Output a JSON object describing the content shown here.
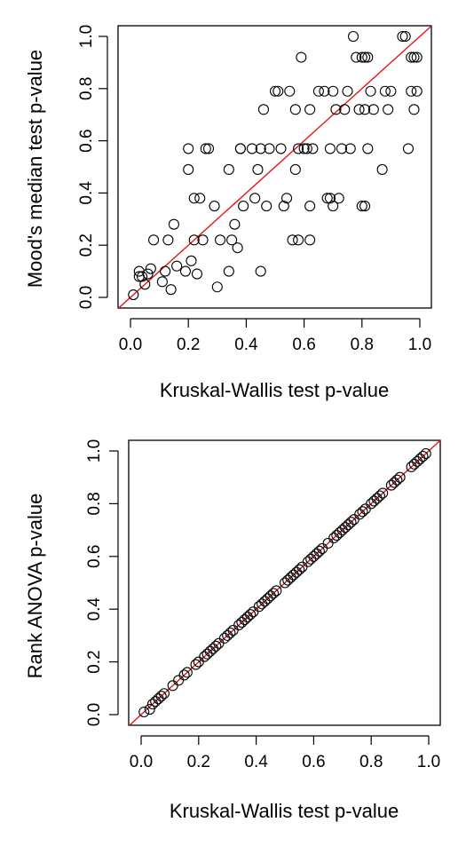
{
  "chart_data": [
    {
      "type": "scatter",
      "title": "",
      "xlabel": "Kruskal-Wallis test p-value",
      "ylabel": "Mood's median test p-value",
      "xlim": [
        0,
        1
      ],
      "ylim": [
        0,
        1
      ],
      "xticks": [
        "0.0",
        "0.2",
        "0.4",
        "0.6",
        "0.8",
        "1.0"
      ],
      "yticks": [
        "0.0",
        "0.2",
        "0.4",
        "0.6",
        "0.8",
        "1.0"
      ],
      "reference_line": {
        "type": "identity",
        "color": "#e31a1c"
      },
      "point_style": "open-circle",
      "grid": false,
      "x": [
        0.01,
        0.03,
        0.03,
        0.05,
        0.04,
        0.06,
        0.08,
        0.07,
        0.11,
        0.12,
        0.13,
        0.14,
        0.15,
        0.16,
        0.19,
        0.2,
        0.2,
        0.21,
        0.22,
        0.22,
        0.23,
        0.24,
        0.25,
        0.26,
        0.27,
        0.29,
        0.3,
        0.31,
        0.34,
        0.34,
        0.35,
        0.36,
        0.37,
        0.38,
        0.38,
        0.39,
        0.42,
        0.43,
        0.44,
        0.45,
        0.45,
        0.46,
        0.47,
        0.48,
        0.5,
        0.51,
        0.52,
        0.53,
        0.54,
        0.55,
        0.56,
        0.57,
        0.58,
        0.58,
        0.59,
        0.6,
        0.61,
        0.62,
        0.62,
        0.62,
        0.63,
        0.65,
        0.67,
        0.68,
        0.69,
        0.7,
        0.7,
        0.71,
        0.72,
        0.73,
        0.74,
        0.75,
        0.77,
        0.78,
        0.79,
        0.8,
        0.8,
        0.81,
        0.81,
        0.82,
        0.82,
        0.83,
        0.84,
        0.87,
        0.88,
        0.89,
        0.9,
        0.94,
        0.95,
        0.96,
        0.97,
        0.97,
        0.98,
        0.98,
        0.99,
        0.99,
        0.81,
        0.76,
        0.69,
        0.57
      ],
      "y": [
        0.01,
        0.08,
        0.1,
        0.05,
        0.08,
        0.09,
        0.22,
        0.11,
        0.06,
        0.1,
        0.22,
        0.03,
        0.28,
        0.12,
        0.1,
        0.57,
        0.49,
        0.14,
        0.38,
        0.22,
        0.09,
        0.38,
        0.22,
        0.57,
        0.57,
        0.35,
        0.04,
        0.22,
        0.49,
        0.1,
        0.22,
        0.28,
        0.19,
        0.57,
        0.57,
        0.35,
        0.57,
        0.38,
        0.49,
        0.57,
        0.1,
        0.72,
        0.35,
        0.57,
        0.79,
        0.79,
        0.57,
        0.35,
        0.38,
        0.79,
        0.22,
        0.72,
        0.22,
        0.57,
        0.92,
        0.57,
        0.57,
        0.22,
        0.35,
        0.72,
        0.57,
        0.79,
        0.79,
        0.38,
        0.57,
        0.35,
        0.79,
        0.72,
        0.38,
        0.57,
        0.72,
        0.79,
        1.0,
        0.92,
        0.72,
        0.35,
        0.92,
        0.35,
        0.92,
        0.57,
        0.92,
        0.79,
        0.72,
        0.49,
        0.79,
        0.72,
        0.79,
        1.0,
        1.0,
        0.57,
        0.79,
        0.92,
        0.92,
        0.72,
        0.92,
        0.79,
        0.72,
        0.57,
        0.38,
        0.49
      ]
    },
    {
      "type": "scatter",
      "title": "",
      "xlabel": "Kruskal-Wallis test p-value",
      "ylabel": "Rank ANOVA p-value",
      "xlim": [
        0,
        1
      ],
      "ylim": [
        0,
        1
      ],
      "xticks": [
        "0.0",
        "0.2",
        "0.4",
        "0.6",
        "0.8",
        "1.0"
      ],
      "yticks": [
        "0.0",
        "0.2",
        "0.4",
        "0.6",
        "0.8",
        "1.0"
      ],
      "reference_line": {
        "type": "identity",
        "color": "#e31a1c"
      },
      "point_style": "open-circle",
      "grid": false,
      "x": [
        0.01,
        0.03,
        0.04,
        0.05,
        0.06,
        0.07,
        0.08,
        0.11,
        0.13,
        0.15,
        0.16,
        0.19,
        0.2,
        0.22,
        0.23,
        0.24,
        0.25,
        0.26,
        0.27,
        0.29,
        0.3,
        0.31,
        0.32,
        0.34,
        0.35,
        0.36,
        0.37,
        0.38,
        0.39,
        0.41,
        0.42,
        0.43,
        0.44,
        0.45,
        0.46,
        0.47,
        0.5,
        0.51,
        0.52,
        0.53,
        0.54,
        0.55,
        0.56,
        0.58,
        0.59,
        0.6,
        0.61,
        0.62,
        0.63,
        0.65,
        0.67,
        0.68,
        0.69,
        0.7,
        0.71,
        0.72,
        0.73,
        0.74,
        0.76,
        0.77,
        0.78,
        0.8,
        0.81,
        0.82,
        0.83,
        0.84,
        0.87,
        0.88,
        0.89,
        0.9,
        0.94,
        0.95,
        0.96,
        0.97,
        0.98,
        0.99
      ],
      "y": [
        0.01,
        0.02,
        0.04,
        0.05,
        0.06,
        0.07,
        0.08,
        0.11,
        0.13,
        0.15,
        0.16,
        0.19,
        0.2,
        0.22,
        0.23,
        0.24,
        0.25,
        0.26,
        0.27,
        0.29,
        0.3,
        0.31,
        0.32,
        0.34,
        0.35,
        0.36,
        0.37,
        0.38,
        0.39,
        0.41,
        0.42,
        0.43,
        0.44,
        0.45,
        0.46,
        0.47,
        0.5,
        0.51,
        0.52,
        0.53,
        0.54,
        0.55,
        0.56,
        0.58,
        0.59,
        0.6,
        0.61,
        0.62,
        0.63,
        0.65,
        0.67,
        0.68,
        0.69,
        0.7,
        0.71,
        0.72,
        0.73,
        0.74,
        0.76,
        0.77,
        0.78,
        0.8,
        0.81,
        0.82,
        0.83,
        0.84,
        0.87,
        0.88,
        0.89,
        0.9,
        0.94,
        0.95,
        0.96,
        0.97,
        0.98,
        0.99
      ]
    }
  ]
}
